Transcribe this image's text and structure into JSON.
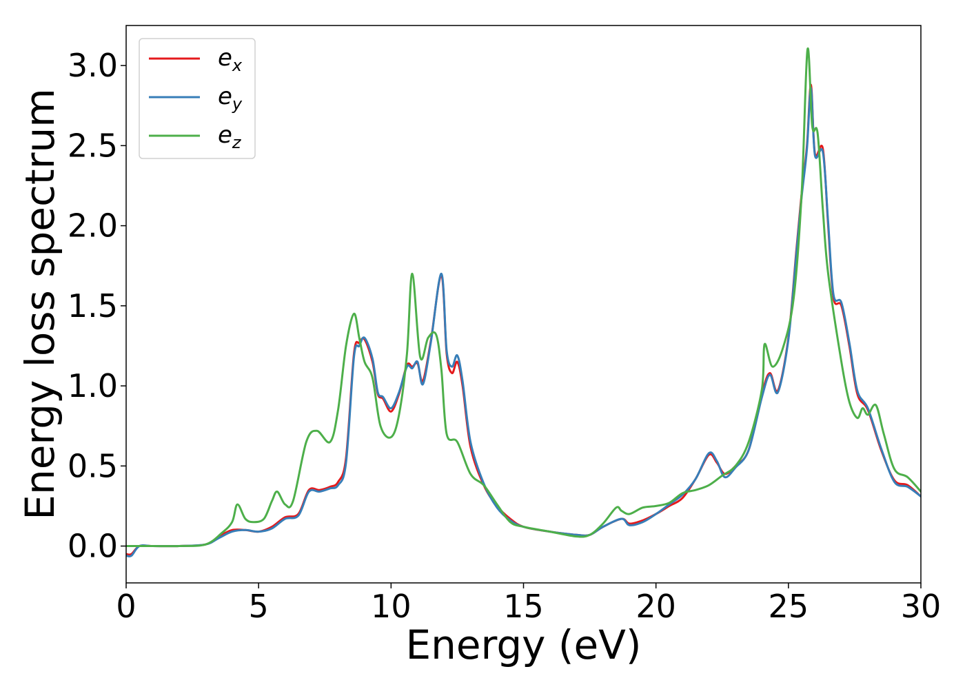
{
  "chart_data": {
    "type": "line",
    "xlabel": "Energy (eV)",
    "ylabel": "Energy loss spectrum",
    "xlim": [
      0,
      30
    ],
    "ylim": [
      -0.23,
      3.25
    ],
    "xticks": [
      0,
      5,
      10,
      15,
      20,
      25,
      30
    ],
    "xtick_labels": [
      "0",
      "5",
      "10",
      "15",
      "20",
      "25",
      "30"
    ],
    "yticks": [
      0.0,
      0.5,
      1.0,
      1.5,
      2.0,
      2.5,
      3.0
    ],
    "ytick_labels": [
      "0.0",
      "0.5",
      "1.0",
      "1.5",
      "2.0",
      "2.5",
      "3.0"
    ],
    "grid": false,
    "legend": "top-left",
    "series": [
      {
        "name": "e",
        "subscript": "x",
        "color": "#e41a1c",
        "x": [
          0,
          0.2,
          0.5,
          1,
          2,
          3,
          3.5,
          4,
          4.5,
          5,
          5.5,
          6,
          6.5,
          6.9,
          7.3,
          7.7,
          8.0,
          8.3,
          8.6,
          8.8,
          9.0,
          9.3,
          9.5,
          9.7,
          10.0,
          10.3,
          10.6,
          10.8,
          11.0,
          11.2,
          11.5,
          11.9,
          12.1,
          12.3,
          12.5,
          12.7,
          13.0,
          13.5,
          14,
          14.5,
          15,
          16,
          17,
          17.5,
          18,
          18.7,
          19,
          19.5,
          20,
          20.5,
          21,
          21.5,
          22,
          22.3,
          22.6,
          23,
          23.5,
          24,
          24.3,
          24.6,
          25,
          25.3,
          25.5,
          25.7,
          25.85,
          26,
          26.3,
          26.5,
          26.7,
          27,
          27.3,
          27.6,
          28,
          28.5,
          29,
          29.5,
          30
        ],
        "y": [
          -0.05,
          -0.05,
          0.0,
          0.0,
          0.0,
          0.01,
          0.06,
          0.1,
          0.1,
          0.09,
          0.12,
          0.18,
          0.2,
          0.35,
          0.35,
          0.37,
          0.4,
          0.55,
          1.2,
          1.27,
          1.29,
          1.15,
          0.95,
          0.92,
          0.84,
          0.95,
          1.13,
          1.12,
          1.14,
          1.03,
          1.28,
          1.69,
          1.2,
          1.08,
          1.15,
          1.0,
          0.62,
          0.38,
          0.25,
          0.17,
          0.12,
          0.09,
          0.07,
          0.07,
          0.12,
          0.17,
          0.14,
          0.16,
          0.2,
          0.25,
          0.3,
          0.42,
          0.57,
          0.52,
          0.45,
          0.5,
          0.6,
          0.95,
          1.08,
          0.97,
          1.3,
          1.85,
          2.2,
          2.5,
          2.88,
          2.45,
          2.48,
          2.0,
          1.55,
          1.5,
          1.25,
          0.95,
          0.85,
          0.6,
          0.41,
          0.38,
          0.31
        ]
      },
      {
        "name": "e",
        "subscript": "y",
        "color": "#377eb8",
        "x": [
          0,
          0.2,
          0.5,
          1,
          2,
          3,
          3.5,
          4,
          4.5,
          5,
          5.5,
          6,
          6.5,
          6.9,
          7.3,
          7.7,
          8.0,
          8.3,
          8.6,
          8.8,
          9.0,
          9.3,
          9.5,
          9.7,
          10.0,
          10.3,
          10.6,
          10.8,
          11.0,
          11.2,
          11.5,
          11.9,
          12.1,
          12.3,
          12.5,
          12.7,
          13.0,
          13.5,
          14,
          14.5,
          15,
          16,
          17,
          17.5,
          18,
          18.7,
          19,
          19.5,
          20,
          20.5,
          21,
          21.5,
          22,
          22.3,
          22.6,
          23,
          23.5,
          24,
          24.3,
          24.6,
          25,
          25.3,
          25.5,
          25.7,
          25.85,
          26,
          26.3,
          26.5,
          26.7,
          27,
          27.3,
          27.6,
          28,
          28.5,
          29,
          29.5,
          30
        ],
        "y": [
          -0.06,
          -0.06,
          0.0,
          0.0,
          0.0,
          0.01,
          0.05,
          0.09,
          0.1,
          0.09,
          0.11,
          0.17,
          0.19,
          0.34,
          0.34,
          0.36,
          0.38,
          0.52,
          1.18,
          1.25,
          1.3,
          1.17,
          0.96,
          0.93,
          0.86,
          0.96,
          1.12,
          1.11,
          1.15,
          1.01,
          1.27,
          1.7,
          1.22,
          1.12,
          1.19,
          1.03,
          0.65,
          0.39,
          0.24,
          0.16,
          0.12,
          0.09,
          0.07,
          0.07,
          0.12,
          0.17,
          0.13,
          0.15,
          0.2,
          0.26,
          0.32,
          0.42,
          0.58,
          0.53,
          0.43,
          0.49,
          0.6,
          0.93,
          1.07,
          0.96,
          1.29,
          1.83,
          2.18,
          2.48,
          2.86,
          2.44,
          2.46,
          2.02,
          1.57,
          1.52,
          1.27,
          0.97,
          0.86,
          0.61,
          0.4,
          0.37,
          0.31
        ]
      },
      {
        "name": "e",
        "subscript": "z",
        "color": "#4daf4a",
        "x": [
          0,
          0.3,
          1,
          2,
          3,
          3.6,
          4.0,
          4.2,
          4.5,
          4.8,
          5.2,
          5.5,
          5.7,
          6.0,
          6.3,
          6.8,
          7.2,
          7.7,
          8.0,
          8.3,
          8.6,
          8.8,
          9.0,
          9.3,
          9.6,
          10.0,
          10.3,
          10.6,
          10.8,
          11.1,
          11.4,
          11.7,
          11.9,
          12.1,
          12.5,
          13.0,
          13.5,
          14,
          14.5,
          15,
          16,
          17,
          17.5,
          18,
          18.5,
          18.7,
          19,
          19.5,
          20,
          20.5,
          21,
          21.5,
          22,
          22.5,
          23,
          23.5,
          24.0,
          24.1,
          24.4,
          24.8,
          25.2,
          25.5,
          25.72,
          25.9,
          26.1,
          26.3,
          26.5,
          27,
          27.3,
          27.6,
          27.8,
          28.0,
          28.3,
          28.6,
          29,
          29.5,
          30
        ],
        "y": [
          0.0,
          0.0,
          0.0,
          0.0,
          0.01,
          0.08,
          0.15,
          0.26,
          0.17,
          0.15,
          0.17,
          0.28,
          0.34,
          0.26,
          0.28,
          0.65,
          0.72,
          0.65,
          0.85,
          1.25,
          1.45,
          1.3,
          1.15,
          1.05,
          0.75,
          0.68,
          0.82,
          1.2,
          1.7,
          1.18,
          1.3,
          1.32,
          1.1,
          0.7,
          0.65,
          0.45,
          0.38,
          0.26,
          0.15,
          0.12,
          0.09,
          0.06,
          0.07,
          0.14,
          0.24,
          0.22,
          0.2,
          0.24,
          0.25,
          0.27,
          0.33,
          0.35,
          0.38,
          0.44,
          0.5,
          0.65,
          0.98,
          1.26,
          1.12,
          1.24,
          1.55,
          2.2,
          3.1,
          2.62,
          2.58,
          2.1,
          1.7,
          1.15,
          0.9,
          0.8,
          0.86,
          0.82,
          0.88,
          0.7,
          0.48,
          0.43,
          0.34
        ]
      }
    ]
  }
}
